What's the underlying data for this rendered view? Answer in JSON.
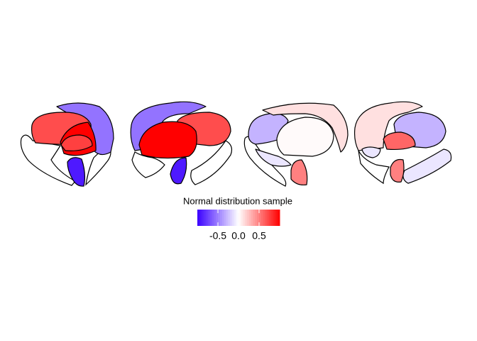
{
  "chart_data": {
    "type": "brain",
    "values": [
      -0.55,
      0.7,
      1.0,
      0.75,
      -0.9,
      -0.55,
      0.7,
      1.0,
      -0.9,
      -0.3,
      0.12,
      0.02,
      -0.1,
      0.5,
      0.12,
      -0.3,
      0.6,
      -0.1,
      -0.1,
      0.5
    ],
    "legend_title": "Normal distribution sample",
    "colors": {
      "low": "#3A00FF",
      "mid": "#FFFFFF",
      "high": "#FF0000"
    },
    "limits": [
      -1,
      1
    ],
    "ticks": [
      -0.5,
      {
        "value": 0,
        "label": "0.0"
      },
      0.5
    ]
  }
}
